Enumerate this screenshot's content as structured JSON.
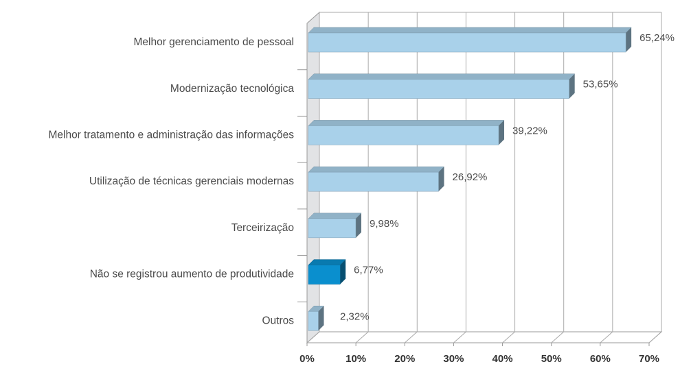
{
  "chart_data": {
    "type": "bar3d_horizontal",
    "categories": [
      "Melhor gerenciamento de pessoal",
      "Modernização tecnológica",
      "Melhor tratamento e administração das informações",
      "Utilização de técnicas gerenciais modernas",
      "Terceirização",
      "Não se registrou aumento de produtividade",
      "Outros"
    ],
    "values": [
      65.24,
      53.65,
      39.22,
      26.92,
      9.98,
      6.77,
      2.32
    ],
    "value_labels": [
      "65,24%",
      "53,65%",
      "39,22%",
      "26,92%",
      "9,98%",
      "6,77%",
      "2,32%"
    ],
    "colors": [
      "#a9d1ea",
      "#a9d1ea",
      "#a9d1ea",
      "#a9d1ea",
      "#a9d1ea",
      "#0a8fce",
      "#a9d1ea"
    ],
    "xlim": [
      0,
      70
    ],
    "xticks": [
      {
        "value": 0,
        "label": "0%"
      },
      {
        "value": 10,
        "label": "10%"
      },
      {
        "value": 20,
        "label": "20%"
      },
      {
        "value": 30,
        "label": "30%"
      },
      {
        "value": 40,
        "label": "40%"
      },
      {
        "value": 50,
        "label": "50%"
      },
      {
        "value": 60,
        "label": "60%"
      },
      {
        "value": 70,
        "label": "70%"
      }
    ],
    "grid": true
  }
}
